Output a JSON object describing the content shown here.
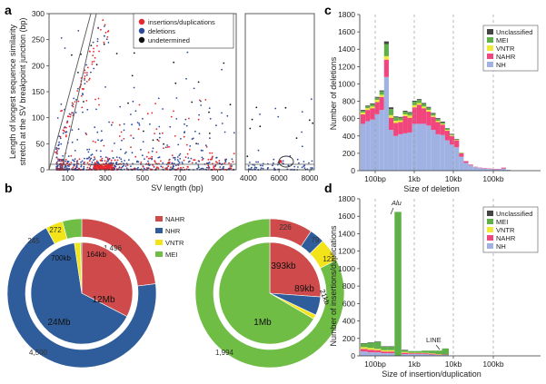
{
  "panels": {
    "a": {
      "label": "a",
      "type": "scatter",
      "xlabel": "SV length (bp)",
      "ylabel_line1": "Length of longest sequence similarity",
      "ylabel_line2": "stretch at the SV breakpoint junction (bp)",
      "left_xlim": [
        0,
        1000
      ],
      "right_xlim": [
        3800,
        8300
      ],
      "ylim": [
        0,
        300
      ],
      "left_xticks": [
        100,
        300,
        500,
        700,
        900
      ],
      "right_xticks": [
        4000,
        6000,
        8000
      ],
      "yticks": [
        0,
        50,
        100,
        150,
        200,
        250,
        300
      ],
      "legend": [
        {
          "name": "insertions/duplications",
          "color": "#e8262b"
        },
        {
          "name": "deletions",
          "color": "#2e4a9e"
        },
        {
          "name": "undetermined",
          "color": "#111111"
        }
      ],
      "colors": {
        "ins": "#e8262b",
        "del": "#2e4a9e",
        "und": "#111111"
      }
    },
    "b": {
      "label": "b",
      "type": "pie",
      "legend": [
        {
          "name": "NAHR",
          "color": "#cf4a4a"
        },
        {
          "name": "NHR",
          "color": "#2f5d9b"
        },
        {
          "name": "VNTR",
          "color": "#f2e418"
        },
        {
          "name": "MEI",
          "color": "#6fbd45"
        }
      ],
      "deletions_counts": {
        "labels": [
          "1,496",
          "4,500",
          "245",
          "272"
        ],
        "values": [
          1496,
          4500,
          245,
          272
        ]
      },
      "deletions_bp": {
        "labels": [
          "12Mb",
          "24Mb",
          "700kb",
          "164kb"
        ],
        "values": [
          12000,
          24000,
          700,
          164
        ]
      },
      "insertions_counts": {
        "labels": [
          "226",
          "79",
          "122",
          "1,994"
        ],
        "values": [
          226,
          79,
          122,
          1994
        ]
      },
      "insertions_bp": {
        "labels": [
          "393kb",
          "89kb",
          "21kb",
          "1Mb"
        ],
        "values": [
          393,
          89,
          21,
          1000
        ]
      }
    },
    "c": {
      "label": "c",
      "type": "bar",
      "xlabel": "Size of deletion",
      "ylabel": "Number of deletions",
      "ylim": [
        0,
        1800
      ],
      "yticks": [
        0,
        200,
        400,
        600,
        800,
        1000,
        1200,
        1400,
        1600,
        1800
      ],
      "xticks": [
        "100bp",
        "1kb",
        "10kb",
        "100kb"
      ],
      "legend": [
        {
          "name": "Unclassified",
          "color": "#444444"
        },
        {
          "name": "MEI",
          "color": "#5fb049"
        },
        {
          "name": "VNTR",
          "color": "#f2ea3a"
        },
        {
          "name": "NAHR",
          "color": "#f0467d"
        },
        {
          "name": "NH",
          "color": "#9fb2e3"
        }
      ],
      "series": [
        {
          "name": "NH",
          "values": [
            540,
            570,
            590,
            650,
            700,
            1080,
            470,
            400,
            420,
            430,
            440,
            540,
            540,
            540,
            520,
            470,
            420,
            410,
            350,
            300,
            270,
            160,
            90,
            60,
            40,
            30,
            25,
            20,
            15,
            15,
            25,
            10
          ]
        },
        {
          "name": "NAHR",
          "values": [
            110,
            130,
            130,
            140,
            150,
            200,
            140,
            150,
            140,
            200,
            170,
            190,
            220,
            180,
            160,
            150,
            140,
            120,
            110,
            100,
            80,
            40,
            20,
            10,
            5,
            5,
            5,
            5,
            5,
            5,
            10,
            0
          ]
        },
        {
          "name": "VNTR",
          "values": [
            20,
            20,
            20,
            25,
            25,
            40,
            30,
            25,
            20,
            20,
            25,
            25,
            20,
            20,
            20,
            15,
            15,
            10,
            10,
            10,
            5,
            5,
            0,
            0,
            0,
            0,
            0,
            0,
            0,
            0,
            0,
            0
          ]
        },
        {
          "name": "MEI",
          "values": [
            20,
            20,
            25,
            25,
            40,
            140,
            70,
            40,
            30,
            30,
            30,
            40,
            35,
            30,
            25,
            20,
            20,
            15,
            15,
            10,
            5,
            5,
            0,
            0,
            0,
            0,
            0,
            0,
            0,
            0,
            0,
            0
          ]
        },
        {
          "name": "Unclassified",
          "values": [
            10,
            10,
            10,
            10,
            10,
            30,
            20,
            10,
            10,
            10,
            10,
            10,
            10,
            10,
            10,
            10,
            10,
            10,
            5,
            5,
            5,
            0,
            0,
            0,
            0,
            0,
            0,
            0,
            0,
            0,
            0,
            0
          ]
        }
      ]
    },
    "d": {
      "label": "d",
      "type": "bar",
      "xlabel": "Size of insertion/duplication",
      "ylabel": "Number of insertions/duplications",
      "ylim": [
        0,
        1800
      ],
      "yticks": [
        0,
        200,
        400,
        600,
        800,
        1000,
        1200,
        1400,
        1600,
        1800
      ],
      "xticks": [
        "100bp",
        "1kb",
        "10kb",
        "100kb"
      ],
      "annotations": [
        "Alu",
        "LINE"
      ],
      "legend": [
        {
          "name": "Unclassified",
          "color": "#444444"
        },
        {
          "name": "MEI",
          "color": "#5fb049"
        },
        {
          "name": "VNTR",
          "color": "#f2ea3a"
        },
        {
          "name": "NAHR",
          "color": "#f0467d"
        },
        {
          "name": "NH",
          "color": "#9fb2e3"
        }
      ],
      "series": [
        {
          "name": "NH",
          "values": [
            50,
            40,
            40,
            30,
            30,
            0,
            20,
            20,
            20,
            20,
            15,
            10,
            10
          ]
        },
        {
          "name": "NAHR",
          "values": [
            30,
            30,
            25,
            20,
            20,
            0,
            15,
            10,
            10,
            10,
            10,
            5,
            5
          ]
        },
        {
          "name": "VNTR",
          "values": [
            20,
            20,
            15,
            15,
            15,
            0,
            10,
            5,
            5,
            5,
            5,
            5,
            0
          ]
        },
        {
          "name": "MEI",
          "values": [
            40,
            60,
            80,
            40,
            40,
            1650,
            20,
            20,
            20,
            25,
            30,
            40,
            70
          ]
        },
        {
          "name": "Unclassified",
          "values": [
            5,
            5,
            5,
            5,
            5,
            0,
            5,
            0,
            0,
            0,
            0,
            0,
            0
          ]
        }
      ]
    }
  }
}
